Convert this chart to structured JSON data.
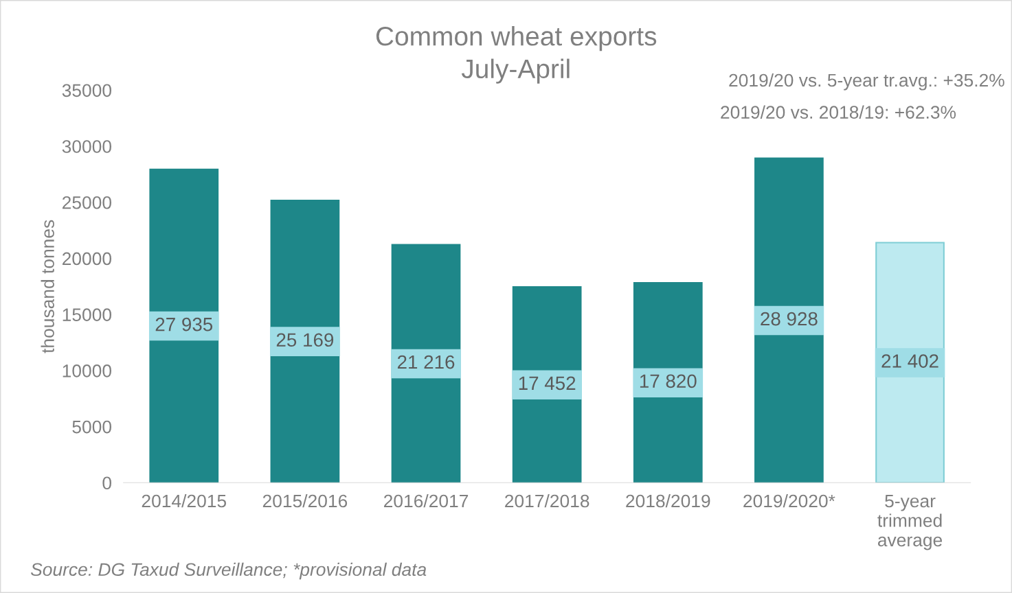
{
  "chart_data": {
    "type": "bar",
    "title": "Common wheat exports",
    "subtitle": "July-April",
    "ylabel": "thousand tonnes",
    "categories": [
      "2014/2015",
      "2015/2016",
      "2016/2017",
      "2017/2018",
      "2018/2019",
      "2019/2020*",
      "5-year\ntrimmed\naverage"
    ],
    "values": [
      27935,
      25169,
      21216,
      17452,
      17820,
      28928,
      21402
    ],
    "colors": [
      "#1e8789",
      "#1e8789",
      "#1e8789",
      "#1e8789",
      "#1e8789",
      "#1e8789",
      "#bdeaf0"
    ],
    "value_labels": [
      "27 935",
      "25 169",
      "21 216",
      "17 452",
      "17 820",
      "28 928",
      "21 402"
    ],
    "ylim": [
      0,
      35000
    ],
    "yticks": [
      0,
      5000,
      10000,
      15000,
      20000,
      25000,
      30000,
      35000
    ],
    "grid": false,
    "legend": false,
    "annotations": [
      "2019/20 vs. 5-year tr.avg.: +35.2%",
      "2019/20 vs. 2018/19: +62.3%",
      "Source: DG Taxud Surveillance; *provisional data"
    ]
  }
}
